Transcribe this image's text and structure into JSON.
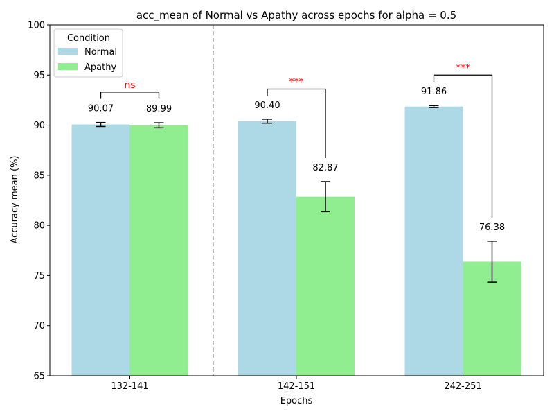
{
  "chart_data": {
    "type": "bar",
    "title": "acc_mean of Normal vs Apathy across epochs for alpha = 0.5",
    "xlabel": "Epochs",
    "ylabel": "Accuracy mean (%)",
    "ylim": [
      65,
      100
    ],
    "yticks": [
      65,
      70,
      75,
      80,
      85,
      90,
      95,
      100
    ],
    "categories": [
      "132-141",
      "142-151",
      "242-251"
    ],
    "grid": false,
    "legend": {
      "title": "Condition",
      "placement": "top-left"
    },
    "series": [
      {
        "name": "Normal",
        "color": "#add8e6",
        "values": [
          90.07,
          90.4,
          91.86
        ],
        "errors": [
          0.2,
          0.2,
          0.1
        ],
        "labels": [
          "90.07",
          "90.40",
          "91.86"
        ]
      },
      {
        "name": "Apathy",
        "color": "#90ee90",
        "values": [
          89.99,
          82.87,
          76.38
        ],
        "errors": [
          0.25,
          1.5,
          2.05
        ],
        "labels": [
          "89.99",
          "82.87",
          "76.38"
        ]
      }
    ],
    "significance": [
      {
        "category": "132-141",
        "label": "ns",
        "bracket_y": 93.3
      },
      {
        "category": "142-151",
        "label": "***",
        "bracket_y": 93.6
      },
      {
        "category": "242-251",
        "label": "***",
        "bracket_y": 95.0
      }
    ],
    "separator_after_category": "132-141",
    "significance_color": "#ff0000"
  }
}
